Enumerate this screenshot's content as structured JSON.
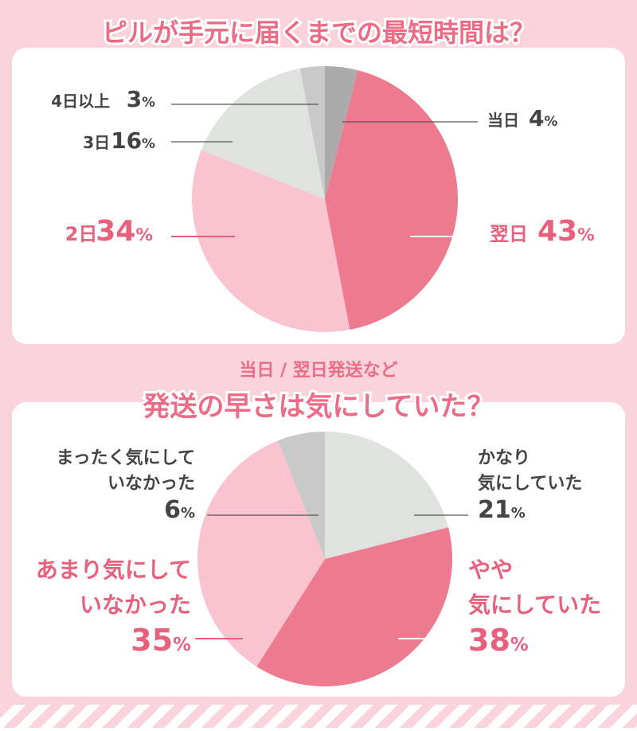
{
  "chart_data": [
    {
      "type": "pie",
      "title": "ピルが手元に届くまでの最短時間は？",
      "categories": [
        "当日",
        "翌日",
        "2日",
        "3日",
        "4日以上"
      ],
      "values": [
        4,
        43,
        34,
        16,
        3
      ],
      "value_labels": [
        "4%",
        "43%",
        "34%",
        "16%",
        "3%"
      ],
      "colors": [
        "#ababab",
        "#ee7a8f",
        "#f9c3d0",
        "#dfe2df",
        "#c9c9c9"
      ]
    },
    {
      "type": "pie",
      "subtitle": "当日 / 翌日発送など",
      "title": "発送の早さは気にしていた？",
      "categories": [
        "かなり\n気にしていた",
        "やや\n気にしていた",
        "あまり気にして\nいなかった",
        "まったく気にして\nいなかった"
      ],
      "values": [
        21,
        38,
        35,
        6
      ],
      "value_labels": [
        "21%",
        "38%",
        "35%",
        "6%"
      ],
      "colors": [
        "#dfe2df",
        "#ee7a8f",
        "#f9c3d0",
        "#c9c9c9"
      ]
    }
  ]
}
